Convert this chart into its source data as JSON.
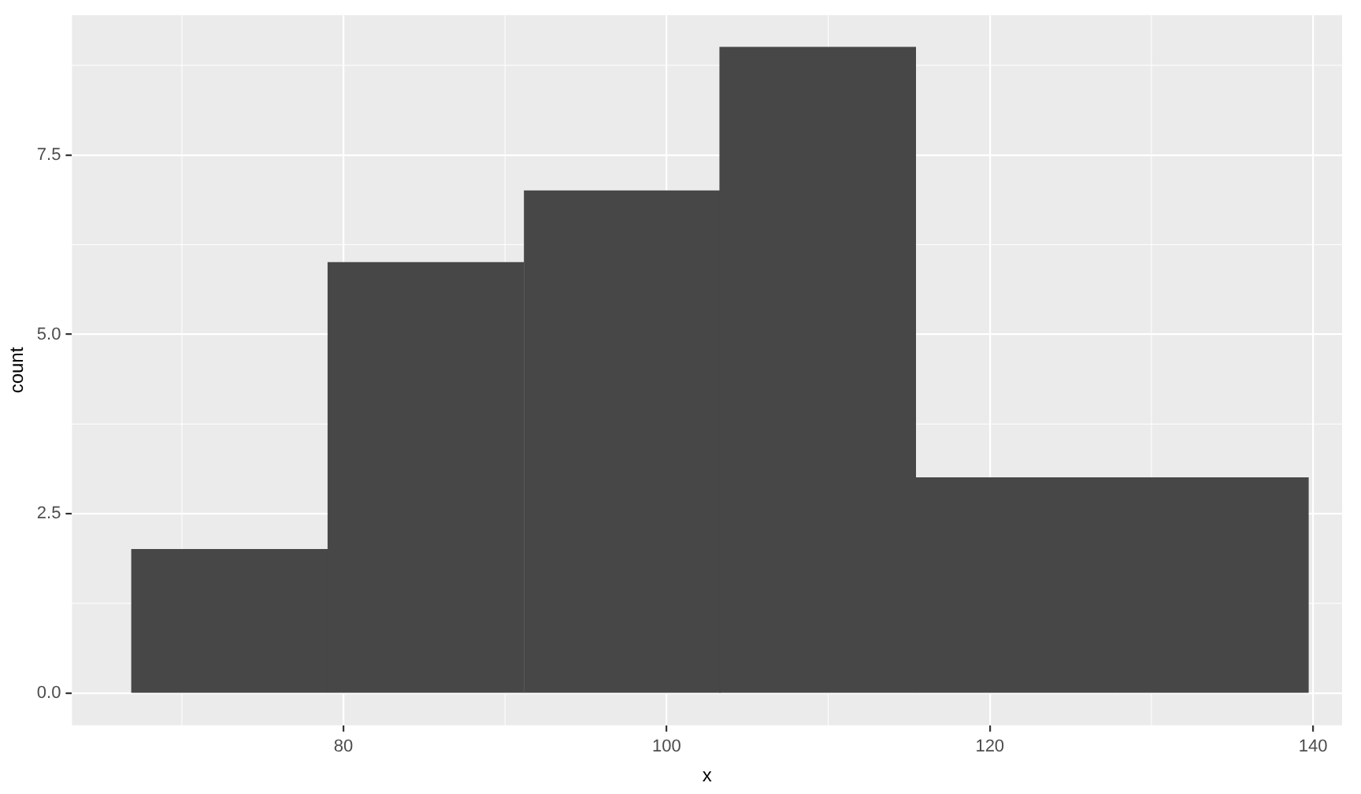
{
  "chart_data": {
    "type": "histogram",
    "xlabel": "x",
    "ylabel": "count",
    "bins": [
      66.9,
      79.0,
      91.2,
      103.3,
      115.4,
      127.6,
      139.7
    ],
    "values": [
      2,
      6,
      7,
      9,
      3,
      3
    ],
    "color": "#474747",
    "xlim": [
      63.2,
      141.8
    ],
    "xticks": [
      80,
      100,
      120,
      140
    ],
    "ylim": [
      -0.45,
      9.45
    ],
    "yticks": [
      {
        "value": 0,
        "label": "0.0"
      },
      {
        "value": 2.5,
        "label": "2.5"
      },
      {
        "value": 5,
        "label": "5.0"
      },
      {
        "value": 7.5,
        "label": "7.5"
      }
    ],
    "grid": true,
    "legend": false
  }
}
